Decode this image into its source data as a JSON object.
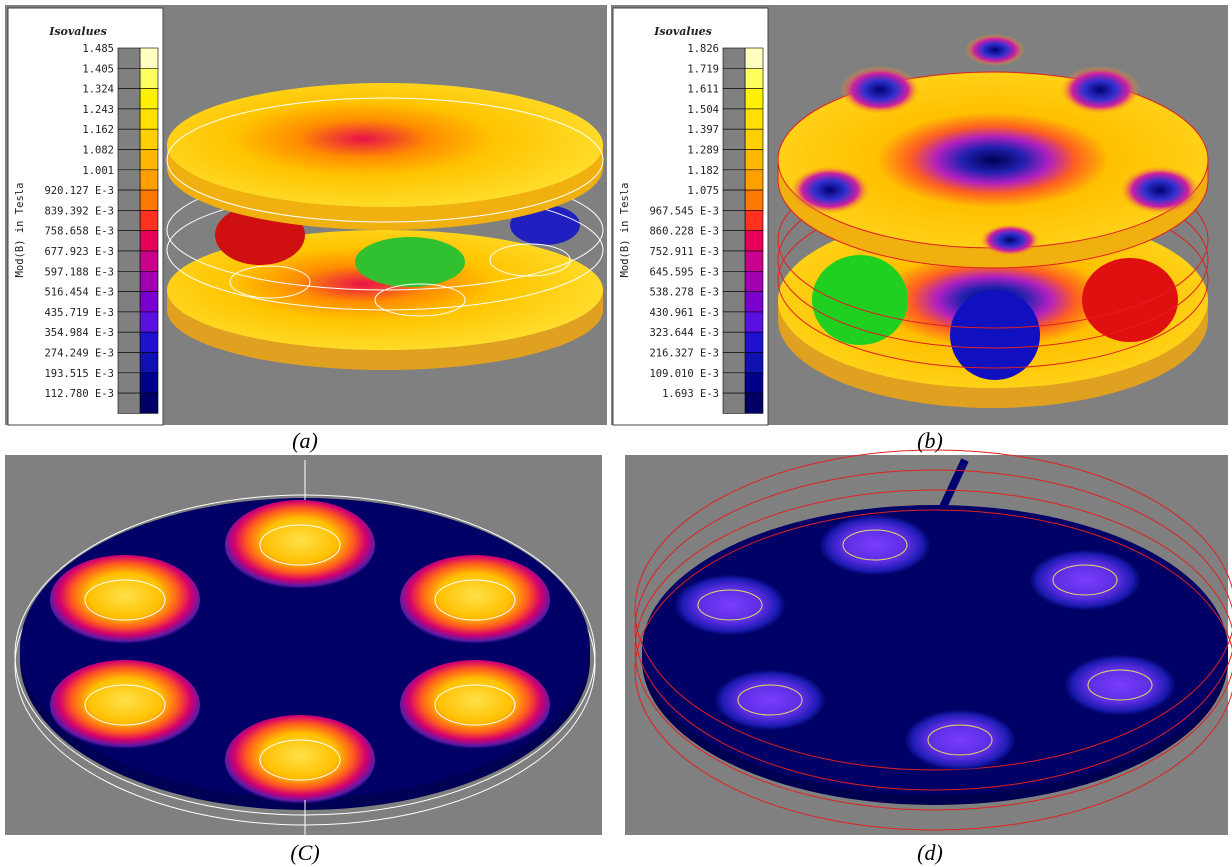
{
  "panels": [
    {
      "legend": {
        "title": "Isovalues",
        "axis_label": "Mod(B) in Tesla",
        "values": [
          "1.485",
          "1.405",
          "1.324",
          "1.243",
          "1.162",
          "1.082",
          "1.001",
          "920.127 E-3",
          "839.392 E-3",
          "758.658 E-3",
          "677.923 E-3",
          "597.188 E-3",
          "516.454 E-3",
          "435.719 E-3",
          "354.984 E-3",
          "274.249 E-3",
          "193.515 E-3",
          "112.780 E-3"
        ]
      },
      "caption": "(a)"
    },
    {
      "legend": {
        "title": "Isovalues",
        "axis_label": "Mod(B) in Tesla",
        "values": [
          "1.826",
          "1.719",
          "1.611",
          "1.504",
          "1.397",
          "1.289",
          "1.182",
          "1.075",
          "967.545 E-3",
          "860.228 E-3",
          "752.911 E-3",
          "645.595 E-3",
          "538.278 E-3",
          "430.961 E-3",
          "323.644 E-3",
          "216.327 E-3",
          "109.010 E-3",
          "1.693 E-3"
        ]
      },
      "caption": "(b)"
    },
    {
      "caption": "(C)"
    },
    {
      "caption": "(d)"
    }
  ]
}
